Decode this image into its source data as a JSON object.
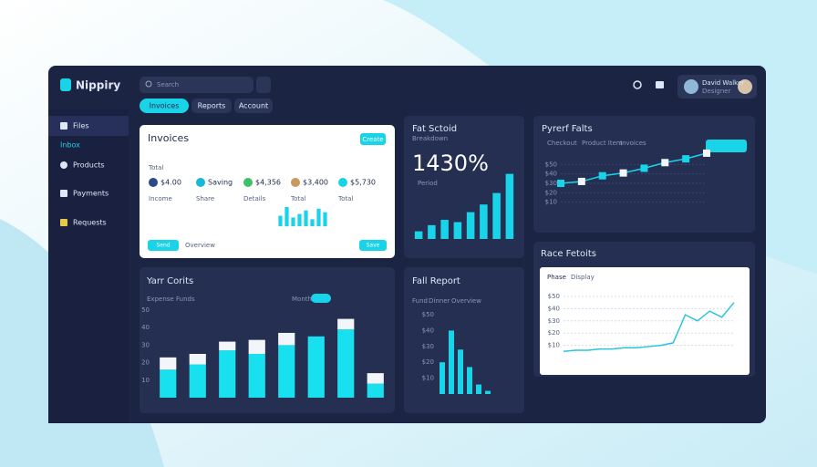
{
  "app": {
    "logo": "Nippiry",
    "search": "Search",
    "tabs": [
      "Invoices",
      "Reports",
      "Account"
    ]
  },
  "sidebar": [
    "Files",
    "Inbox",
    "Products",
    "Payments",
    "Requests"
  ],
  "user": {
    "name": "David Walker",
    "role": "Designer"
  },
  "invoices": {
    "title": "Invoices",
    "button": "Create",
    "subtitle": "Total",
    "items": [
      {
        "amount": "$4.00",
        "label": "Income"
      },
      {
        "amount": "Saving",
        "label": "Share"
      },
      {
        "amount": "$4,356",
        "label": "Details"
      },
      {
        "amount": "$3,400",
        "label": "Total"
      },
      {
        "amount": "$5,730",
        "label": "Total"
      }
    ],
    "footer": [
      "Send",
      "Overview",
      "Save"
    ],
    "chart": {
      "type": "bar",
      "values": [
        30,
        55,
        25,
        35,
        45,
        20,
        50,
        40
      ],
      "color": "#19d3e8",
      "ylim": [
        0,
        60
      ]
    }
  },
  "sales": {
    "title": "Fat Sctoid",
    "subtitle": "Breakdown",
    "kpi": "1430%",
    "note": "Period",
    "chart": {
      "type": "bar",
      "values": [
        10,
        18,
        25,
        22,
        35,
        45,
        60,
        85
      ],
      "color": "#19d3e8",
      "ylim": [
        0,
        100
      ]
    }
  },
  "profit": {
    "title": "Pyrerf Falts",
    "legend": [
      "Checkout",
      "Product Item",
      "Invoices"
    ],
    "chart": {
      "type": "line",
      "values": [
        30,
        32,
        38,
        41,
        46,
        52,
        56,
        62
      ],
      "color": "#19d3e8",
      "ylim": [
        0,
        60
      ],
      "yticks": [
        {
          "value": 10,
          "label": "$10"
        },
        {
          "value": 20,
          "label": "$20"
        },
        {
          "value": 30,
          "label": "$30"
        },
        {
          "value": 40,
          "label": "$40"
        },
        {
          "value": 50,
          "label": "$50"
        }
      ],
      "grid": true
    }
  },
  "costs": {
    "title": "Yarr Corits",
    "filters": [
      "Expense",
      "Funds"
    ],
    "toggle": "Month",
    "chart": {
      "type": "stacked-bar",
      "ylim": [
        0,
        50
      ],
      "yticks": [
        10,
        20,
        30,
        40,
        50
      ],
      "grid": false,
      "series": [
        {
          "color": "#19e0ef",
          "values": [
            16,
            19,
            27,
            25,
            30,
            35,
            39,
            8
          ]
        },
        {
          "color": "#f2f6fb",
          "values": [
            7,
            6,
            5,
            8,
            7,
            0,
            6,
            6
          ]
        }
      ]
    }
  },
  "report": {
    "title": "Fall Report",
    "filters": [
      "Fund",
      "Dinner",
      "Overview"
    ],
    "chart": {
      "type": "bar",
      "values": [
        20,
        40,
        28,
        17,
        6,
        2
      ],
      "color": "#19d3e8",
      "ylim": [
        0,
        50
      ],
      "yticks": [
        {
          "value": 10,
          "label": "$10"
        },
        {
          "value": 20,
          "label": "$20"
        },
        {
          "value": 30,
          "label": "$30"
        },
        {
          "value": 40,
          "label": "$40"
        },
        {
          "value": 50,
          "label": "$50"
        }
      ],
      "grid": false
    }
  },
  "rates": {
    "title": "Race Fetoits",
    "tabs": [
      "Phase",
      "Display"
    ],
    "chart": {
      "type": "line",
      "values": [
        5,
        6,
        6,
        7,
        7,
        8,
        8,
        9,
        10,
        12,
        35,
        30,
        38,
        33,
        45
      ],
      "color": "#2bc3de",
      "ylim": [
        0,
        50
      ],
      "yticks": [
        {
          "value": 10,
          "label": "$10"
        },
        {
          "value": 20,
          "label": "$20"
        },
        {
          "value": 30,
          "label": "$30"
        },
        {
          "value": 40,
          "label": "$40"
        },
        {
          "value": 50,
          "label": "$50"
        }
      ],
      "grid": true
    }
  }
}
